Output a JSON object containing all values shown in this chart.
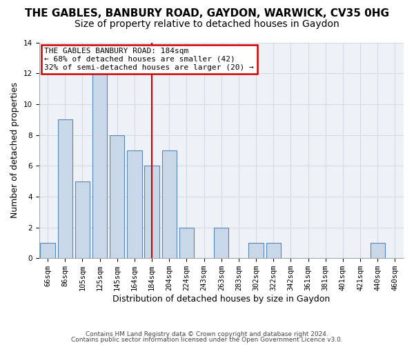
{
  "title": "THE GABLES, BANBURY ROAD, GAYDON, WARWICK, CV35 0HG",
  "subtitle": "Size of property relative to detached houses in Gaydon",
  "xlabel": "Distribution of detached houses by size in Gaydon",
  "ylabel": "Number of detached properties",
  "footer1": "Contains HM Land Registry data © Crown copyright and database right 2024.",
  "footer2": "Contains public sector information licensed under the Open Government Licence v3.0.",
  "categories": [
    "66sqm",
    "86sqm",
    "105sqm",
    "125sqm",
    "145sqm",
    "164sqm",
    "184sqm",
    "204sqm",
    "224sqm",
    "243sqm",
    "263sqm",
    "283sqm",
    "302sqm",
    "322sqm",
    "342sqm",
    "361sqm",
    "381sqm",
    "401sqm",
    "421sqm",
    "440sqm",
    "460sqm"
  ],
  "values": [
    1,
    9,
    5,
    12,
    8,
    7,
    6,
    7,
    2,
    0,
    2,
    0,
    1,
    1,
    0,
    0,
    0,
    0,
    0,
    1,
    0
  ],
  "bar_color": "#c8d8e8",
  "bar_edge_color": "#5585b0",
  "highlight_idx": 6,
  "highlight_label": "THE GABLES BANBURY ROAD: 184sqm",
  "annotation_line1": "← 68% of detached houses are smaller (42)",
  "annotation_line2": "32% of semi-detached houses are larger (20) →",
  "annotation_box_color": "#cc0000",
  "vline_color": "#cc0000",
  "ylim": [
    0,
    14
  ],
  "yticks": [
    0,
    2,
    4,
    6,
    8,
    10,
    12,
    14
  ],
  "grid_color": "#d0dce8",
  "plot_bg_color": "#eef2f7",
  "title_fontsize": 11,
  "subtitle_fontsize": 10,
  "axis_label_fontsize": 9,
  "tick_fontsize": 7.5,
  "annotation_fontsize": 8
}
